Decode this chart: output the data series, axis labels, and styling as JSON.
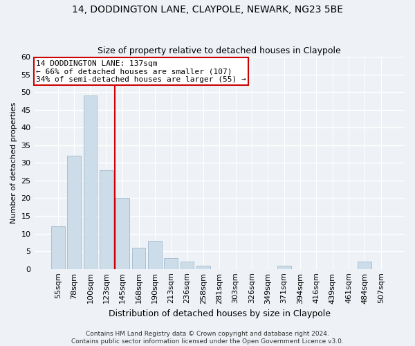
{
  "title_line1": "14, DODDINGTON LANE, CLAYPOLE, NEWARK, NG23 5BE",
  "title_line2": "Size of property relative to detached houses in Claypole",
  "xlabel": "Distribution of detached houses by size in Claypole",
  "ylabel": "Number of detached properties",
  "bar_labels": [
    "55sqm",
    "78sqm",
    "100sqm",
    "123sqm",
    "145sqm",
    "168sqm",
    "190sqm",
    "213sqm",
    "236sqm",
    "258sqm",
    "281sqm",
    "303sqm",
    "326sqm",
    "349sqm",
    "371sqm",
    "394sqm",
    "416sqm",
    "439sqm",
    "461sqm",
    "484sqm",
    "507sqm"
  ],
  "bar_values": [
    12,
    32,
    49,
    28,
    20,
    6,
    8,
    3,
    2,
    1,
    0,
    0,
    0,
    0,
    1,
    0,
    0,
    0,
    0,
    2,
    0
  ],
  "bar_color": "#ccdce8",
  "bar_edgecolor": "#a8c0d4",
  "property_line_x": 3.5,
  "property_line_label": "14 DODDINGTON LANE: 137sqm",
  "annotation_line2": "← 66% of detached houses are smaller (107)",
  "annotation_line3": "34% of semi-detached houses are larger (55) →",
  "annotation_box_color": "#ffffff",
  "annotation_box_edgecolor": "#cc0000",
  "vline_color": "#cc0000",
  "ylim": [
    0,
    60
  ],
  "yticks": [
    0,
    5,
    10,
    15,
    20,
    25,
    30,
    35,
    40,
    45,
    50,
    55,
    60
  ],
  "footer_line1": "Contains HM Land Registry data © Crown copyright and database right 2024.",
  "footer_line2": "Contains public sector information licensed under the Open Government Licence v3.0.",
  "bg_color": "#eef2f6",
  "plot_bg_color": "#eef2f6",
  "title1_fontsize": 10,
  "title2_fontsize": 9,
  "annotation_fontsize": 8,
  "ylabel_fontsize": 8,
  "xlabel_fontsize": 9,
  "tick_fontsize": 8,
  "footer_fontsize": 6.5
}
